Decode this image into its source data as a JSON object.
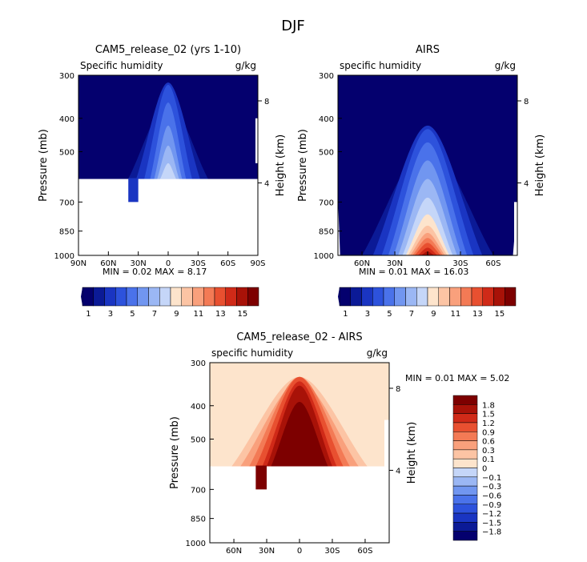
{
  "figure": {
    "title": "DJF"
  },
  "chart_data": [
    {
      "id": "model",
      "type": "heatmap",
      "title": "CAM5_release_02 (yrs 1-10)",
      "subtitle_left": "Specific humidity",
      "units": "g/kg",
      "ylabel": "Pressure (mb)",
      "ylabel_right": "Height (km)",
      "ylim": [
        1000,
        300
      ],
      "y_scale": "log",
      "y_ticks": [
        "300",
        "400",
        "500",
        "700",
        "850",
        "1000"
      ],
      "y_ticks_right": [
        "8",
        "4"
      ],
      "x_ticks": [
        "90N",
        "60N",
        "30N",
        "0",
        "30S",
        "60S",
        "90S"
      ],
      "min_label": "MIN =",
      "min_value": "0.02",
      "max_label": "MAX =",
      "max_value": "8.17",
      "colorbar": {
        "orientation": "horizontal",
        "labels": [
          "1",
          "3",
          "5",
          "7",
          "9",
          "11",
          "13",
          "15"
        ],
        "colors": [
          "#04006e",
          "#0b1a96",
          "#1a35c2",
          "#2d52dc",
          "#4a72ea",
          "#7196f0",
          "#9bb7f4",
          "#c5d6f8",
          "#fde4cc",
          "#fcc4a4",
          "#f9a07c",
          "#f37a55",
          "#e85030",
          "#d02a18",
          "#a81208",
          "#7d0000"
        ]
      },
      "field": {
        "peak_latitude": 0,
        "peak_value_g_per_kg": 8.17,
        "data_lower_bound_mb": 600,
        "notch_latitudes": [
          "40N",
          "30N"
        ],
        "notch_lower_bound_mb": 700
      }
    },
    {
      "id": "obs",
      "type": "heatmap",
      "title": "AIRS",
      "subtitle_left": "specific humidity",
      "units": "g/kg",
      "ylabel": "Pressure (mb)",
      "ylabel_right": "Height (km)",
      "ylim": [
        1000,
        300
      ],
      "y_scale": "log",
      "y_ticks": [
        "300",
        "400",
        "500",
        "700",
        "850",
        "1000"
      ],
      "y_ticks_right": [
        "8",
        "4"
      ],
      "x_ticks": [
        "60N",
        "30N",
        "0",
        "30S",
        "60S"
      ],
      "min_label": "MIN =",
      "min_value": "0.01",
      "max_label": "MAX =",
      "max_value": "16.03",
      "colorbar": {
        "orientation": "horizontal",
        "labels": [
          "1",
          "3",
          "5",
          "7",
          "9",
          "11",
          "13",
          "15"
        ],
        "colors": [
          "#04006e",
          "#0b1a96",
          "#1a35c2",
          "#2d52dc",
          "#4a72ea",
          "#7196f0",
          "#9bb7f4",
          "#c5d6f8",
          "#fde4cc",
          "#fcc4a4",
          "#f9a07c",
          "#f37a55",
          "#e85030",
          "#d02a18",
          "#a81208",
          "#7d0000"
        ]
      },
      "field": {
        "peak_latitude": 0,
        "peak_value_g_per_kg": 16.03,
        "data_lower_bound_mb": 1000
      }
    },
    {
      "id": "diff",
      "type": "heatmap",
      "title": "CAM5_release_02 - AIRS",
      "subtitle_left": "specific humidity",
      "units": "g/kg",
      "ylabel": "Pressure (mb)",
      "ylabel_right": "Height (km)",
      "ylim": [
        1000,
        300
      ],
      "y_scale": "log",
      "y_ticks": [
        "300",
        "400",
        "500",
        "700",
        "850",
        "1000"
      ],
      "y_ticks_right": [
        "8",
        "4"
      ],
      "x_ticks": [
        "60N",
        "30N",
        "0",
        "30S",
        "60S"
      ],
      "min_label": "MIN =",
      "min_value": "0.01",
      "max_label": "MAX =",
      "max_value": "5.02",
      "colorbar": {
        "orientation": "vertical",
        "labels": [
          "1.8",
          "1.5",
          "1.2",
          "0.9",
          "0.6",
          "0.3",
          "0.1",
          "0",
          "−0.1",
          "−0.3",
          "−0.6",
          "−0.9",
          "−1.2",
          "−1.5",
          "−1.8"
        ],
        "colors": [
          "#7d0000",
          "#a81208",
          "#d02a18",
          "#e85030",
          "#f37a55",
          "#f9a07c",
          "#fcc4a4",
          "#fde4cc",
          "#c5d6f8",
          "#9bb7f4",
          "#7196f0",
          "#4a72ea",
          "#2d52dc",
          "#1a35c2",
          "#0b1a96",
          "#04006e"
        ]
      },
      "field": {
        "peak_latitude": 0,
        "data_lower_bound_mb": 600,
        "notch_latitudes": [
          "40N",
          "30N"
        ],
        "notch_lower_bound_mb": 700
      }
    }
  ]
}
